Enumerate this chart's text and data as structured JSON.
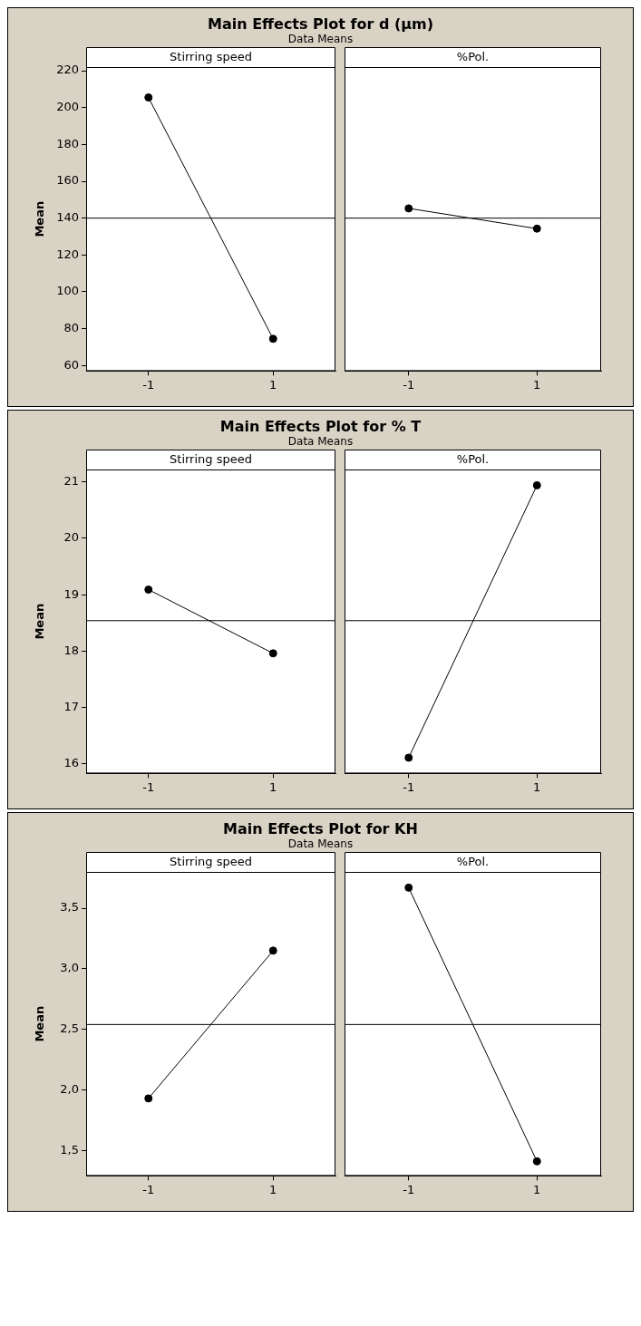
{
  "chart_data": [
    {
      "type": "other",
      "title": "Main Effects Plot for d (µm)",
      "subtitle": "Data Means"
    },
    {
      "type": "line",
      "title": "Stirring speed",
      "ylabel": "Mean",
      "categories": [
        "-1",
        "1"
      ],
      "values": [
        205.5,
        74.5
      ],
      "color": "#000000",
      "marker": "circle",
      "ylim": [
        57,
        222
      ],
      "yticks": [
        60,
        80,
        100,
        120,
        140,
        160,
        180,
        200,
        220
      ],
      "ref_lines": [
        {
          "axis": "y",
          "value": 140
        }
      ]
    },
    {
      "type": "line",
      "title": "%Pol.",
      "categories": [
        "-1",
        "1"
      ],
      "values": [
        145.3,
        134.3
      ],
      "color": "#000000",
      "marker": "circle",
      "ylim": [
        57,
        222
      ],
      "tick_labels": "x",
      "ref_lines": [
        {
          "axis": "y",
          "value": 140
        }
      ]
    },
    {
      "type": "other",
      "title": "Main Effects Plot for % T",
      "subtitle": "Data Means"
    },
    {
      "type": "line",
      "title": "Stirring speed",
      "ylabel": "Mean",
      "categories": [
        "-1",
        "1"
      ],
      "values": [
        19.09,
        17.96
      ],
      "color": "#000000",
      "marker": "circle",
      "ylim": [
        15.83,
        21.22
      ],
      "yticks": [
        16,
        17,
        18,
        19,
        20,
        21
      ],
      "ref_lines": [
        {
          "axis": "y",
          "value": 18.54
        }
      ]
    },
    {
      "type": "line",
      "title": "%Pol.",
      "categories": [
        "-1",
        "1"
      ],
      "values": [
        16.11,
        20.94
      ],
      "color": "#000000",
      "marker": "circle",
      "ylim": [
        15.83,
        21.22
      ],
      "tick_labels": "x",
      "ref_lines": [
        {
          "axis": "y",
          "value": 18.54
        }
      ]
    },
    {
      "type": "other",
      "title": "Main Effects Plot for KH",
      "subtitle": "Data Means"
    },
    {
      "type": "line",
      "title": "Stirring speed",
      "ylabel": "Mean",
      "categories": [
        "-1",
        "1"
      ],
      "values": [
        1.93,
        3.15
      ],
      "color": "#000000",
      "marker": "circle",
      "ylim": [
        1.29,
        3.8
      ],
      "yticks": [
        {
          "value": 1.5,
          "label": "1,5"
        },
        {
          "value": 2,
          "label": "2,0"
        },
        {
          "value": 2.5,
          "label": "2,5"
        },
        {
          "value": 3,
          "label": "3,0"
        },
        {
          "value": 3.5,
          "label": "3,5"
        }
      ],
      "ref_lines": [
        {
          "axis": "y",
          "value": 2.54
        }
      ]
    },
    {
      "type": "line",
      "title": "%Pol.",
      "categories": [
        "-1",
        "1"
      ],
      "values": [
        3.67,
        1.41
      ],
      "color": "#000000",
      "marker": "circle",
      "ylim": [
        1.29,
        3.8
      ],
      "tick_labels": "x",
      "ref_lines": [
        {
          "axis": "y",
          "value": 2.54
        }
      ]
    }
  ]
}
